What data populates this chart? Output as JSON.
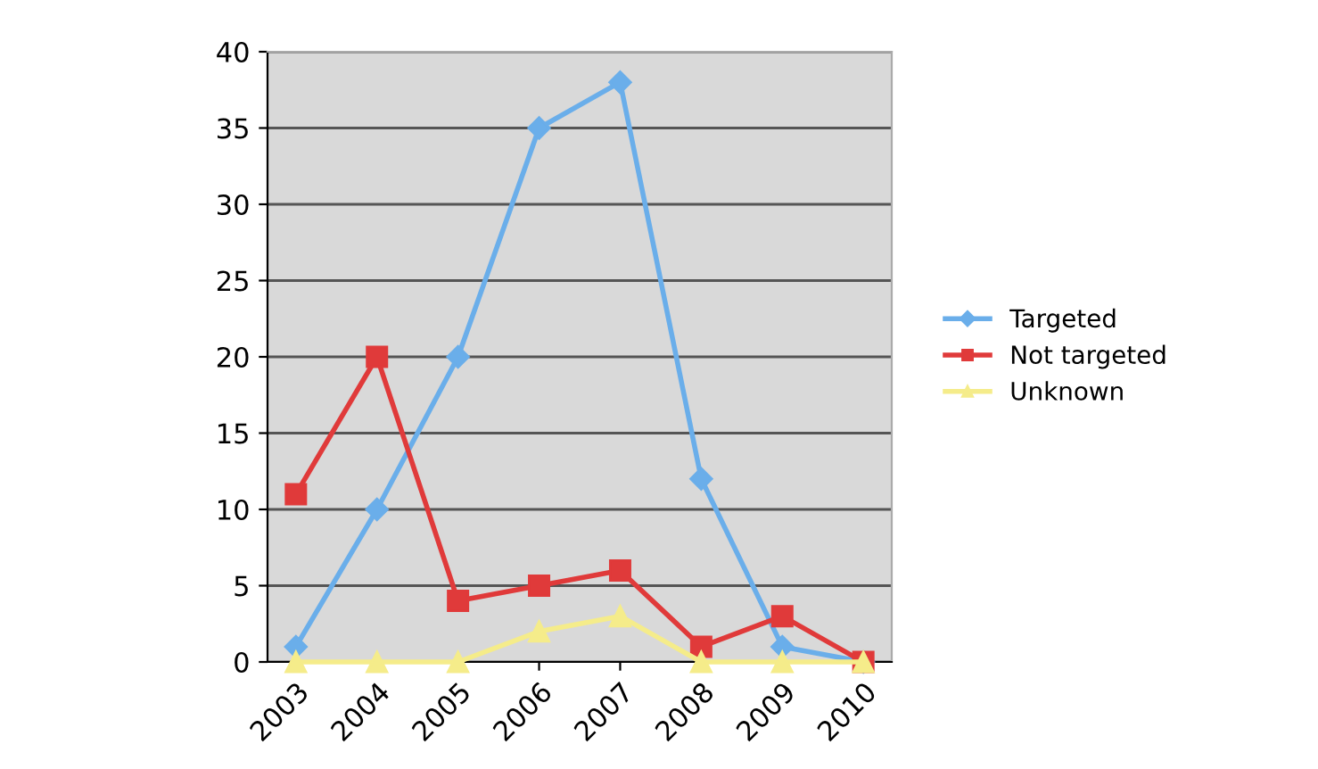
{
  "chart_data": {
    "type": "line",
    "categories": [
      "2003",
      "2004",
      "2005",
      "2006",
      "2007",
      "2008",
      "2009",
      "2010"
    ],
    "series": [
      {
        "name": "Targeted",
        "color": "#6aaeea",
        "values": [
          1,
          10,
          20,
          35,
          38,
          12,
          1,
          0
        ],
        "marker": "diamond"
      },
      {
        "name": "Not targeted",
        "color": "#e03a3a",
        "values": [
          11,
          20,
          4,
          5,
          6,
          1,
          3,
          0
        ],
        "marker": "square"
      },
      {
        "name": "Unknown",
        "color": "#f5ec8a",
        "values": [
          0,
          0,
          0,
          2,
          3,
          0,
          0,
          0
        ],
        "marker": "triangle"
      }
    ],
    "ylim": [
      0,
      40
    ],
    "yticks": [
      0,
      5,
      10,
      15,
      20,
      25,
      30,
      35,
      40
    ],
    "grid": "y",
    "legend": "right"
  }
}
